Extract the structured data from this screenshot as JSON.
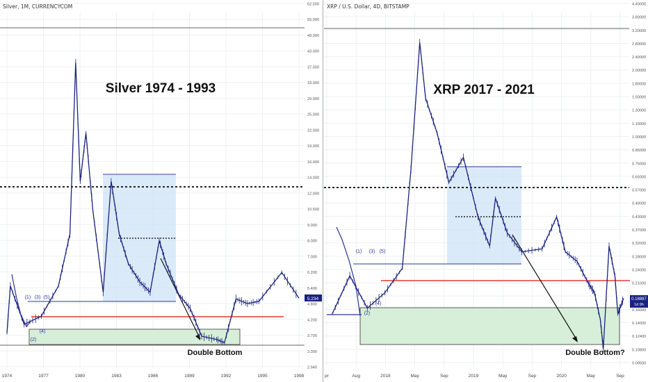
{
  "charts": [
    {
      "header": "Silver, 1M, CURRENCYCOM",
      "annotation_title": "Silver 1974 - 1993",
      "pattern_label": "Double Bottom",
      "wave_labels": [
        "(1)",
        "(3)",
        "(5)",
        "(2)",
        "(4)"
      ],
      "price_tag": "5.234",
      "x_ticks": [
        "1974",
        "1977",
        "1980",
        "1983",
        "1986",
        "1989",
        "1992",
        "1995",
        "1998"
      ],
      "y_ticks": [
        "62.500",
        "55.000",
        "49.000",
        "43.000",
        "37.500",
        "33.000",
        "29.000",
        "25.000",
        "22.000",
        "19.000",
        "16.000",
        "14.000",
        "12.000",
        "10.500",
        "9.000",
        "8.000",
        "7.000",
        "6.200",
        "5.400",
        "4.800",
        "4.200",
        "3.700",
        "3.300",
        "2.940"
      ]
    },
    {
      "header": "XRP / U.S. Dollar, 4D, BITSTAMP",
      "annotation_title": "XRP 2017 - 2021",
      "pattern_label": "Double Bottom?",
      "wave_labels": [
        "(1)",
        "(3)",
        "(5)",
        "(2)",
        "(4)"
      ],
      "price_tag": "0.18887",
      "price_tag_sub": "1d 9h",
      "x_ticks": [
        "pr",
        "Aug",
        "2018",
        "May",
        "Sep",
        "2019",
        "May",
        "Sep",
        "2020",
        "May",
        "Sep"
      ],
      "y_ticks": [
        "4.40000",
        "3.80000",
        "3.20000",
        "2.80000",
        "2.40000",
        "2.00000",
        "1.80000",
        "1.50000",
        "1.30000",
        "1.15000",
        "1.00000",
        "0.85000",
        "0.75000",
        "0.65000",
        "0.57000",
        "0.49000",
        "0.43000",
        "0.37000",
        "0.32000",
        "0.28000",
        "0.24000",
        "0.21000",
        "0.18000",
        "0.16000",
        "0.14000",
        "0.12400",
        "0.10800",
        "0.09500"
      ]
    }
  ],
  "chart_data": [
    {
      "type": "candlestick",
      "title": "Silver 1974 - 1993",
      "x": [
        "1974",
        "1977",
        "1980",
        "1983",
        "1986",
        "1989",
        "1992",
        "1995",
        "1998"
      ],
      "y_scale": "log",
      "ylim": [
        2.94,
        62.5
      ],
      "approx_close_path": [
        [
          1974.0,
          3.9
        ],
        [
          1974.3,
          5.8
        ],
        [
          1975.5,
          4.2
        ],
        [
          1977.0,
          4.5
        ],
        [
          1978.5,
          5.8
        ],
        [
          1979.5,
          9.0
        ],
        [
          1980.0,
          38.0
        ],
        [
          1980.4,
          14.0
        ],
        [
          1980.9,
          21.0
        ],
        [
          1981.5,
          11.0
        ],
        [
          1982.4,
          5.5
        ],
        [
          1983.1,
          14.0
        ],
        [
          1983.8,
          9.0
        ],
        [
          1984.6,
          7.0
        ],
        [
          1985.6,
          6.0
        ],
        [
          1986.5,
          5.5
        ],
        [
          1987.3,
          8.5
        ],
        [
          1987.9,
          7.0
        ],
        [
          1989.0,
          5.4
        ],
        [
          1990.0,
          4.8
        ],
        [
          1991.0,
          3.8
        ],
        [
          1992.3,
          3.7
        ],
        [
          1993.0,
          3.6
        ],
        [
          1994.0,
          5.2
        ],
        [
          1995.0,
          5.0
        ],
        [
          1996.0,
          5.1
        ],
        [
          1998.0,
          6.5
        ],
        [
          1999.5,
          5.234
        ]
      ],
      "levels": {
        "top_line": 49.0,
        "dotted_resistance": 13.3,
        "red_line": 4.5,
        "blue_support": 5.2
      },
      "colors": {
        "candles": "#1a237e",
        "red_line": "#e53935",
        "blue_box": "#bbdefb",
        "green_box": "#c8e6c9"
      }
    },
    {
      "type": "candlestick",
      "title": "XRP 2017 - 2021",
      "x": [
        "pr",
        "Aug",
        "2018",
        "May",
        "Sep",
        "2019",
        "May",
        "Sep",
        "2020",
        "May",
        "Sep"
      ],
      "y_scale": "log",
      "ylim": [
        0.095,
        4.4
      ],
      "approx_close_path": [
        [
          0.0,
          0.16
        ],
        [
          0.06,
          0.24
        ],
        [
          0.12,
          0.17
        ],
        [
          0.18,
          0.2
        ],
        [
          0.24,
          0.26
        ],
        [
          0.27,
          0.75
        ],
        [
          0.3,
          2.9
        ],
        [
          0.32,
          1.6
        ],
        [
          0.36,
          1.1
        ],
        [
          0.4,
          0.65
        ],
        [
          0.45,
          0.85
        ],
        [
          0.5,
          0.45
        ],
        [
          0.54,
          0.33
        ],
        [
          0.56,
          0.55
        ],
        [
          0.6,
          0.38
        ],
        [
          0.65,
          0.31
        ],
        [
          0.72,
          0.32
        ],
        [
          0.77,
          0.45
        ],
        [
          0.8,
          0.31
        ],
        [
          0.84,
          0.28
        ],
        [
          0.88,
          0.22
        ],
        [
          0.9,
          0.2
        ],
        [
          0.92,
          0.15
        ],
        [
          0.93,
          0.11
        ],
        [
          0.95,
          0.33
        ],
        [
          0.97,
          0.24
        ],
        [
          0.98,
          0.16
        ],
        [
          1.0,
          0.18887
        ]
      ],
      "levels": {
        "top_line": 3.2,
        "dotted_resistance": 0.62,
        "red_line": 0.22,
        "blue_support": 0.275
      },
      "colors": {
        "candles": "#1a237e",
        "red_line": "#e53935",
        "blue_box": "#bbdefb",
        "green_box": "#c8e6c9"
      }
    }
  ]
}
